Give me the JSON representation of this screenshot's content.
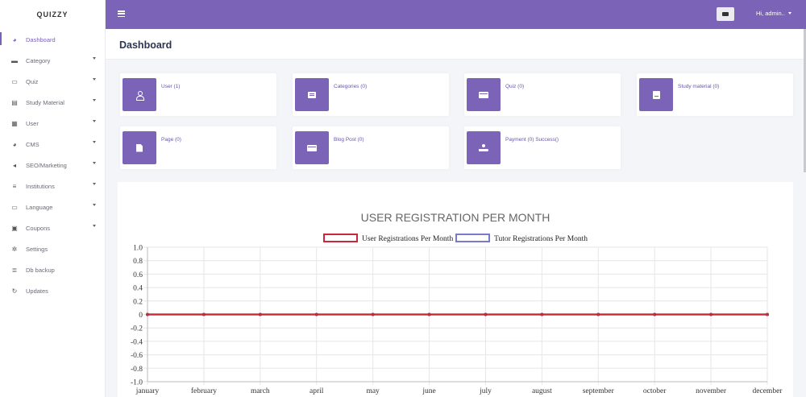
{
  "brand": "QUIZZY",
  "sidebar": {
    "items": [
      {
        "label": "Dashboard",
        "icon": "palette-icon",
        "active": true,
        "has_submenu": false
      },
      {
        "label": "Category",
        "icon": "folder-icon",
        "active": false,
        "has_submenu": true
      },
      {
        "label": "Quiz",
        "icon": "keyboard-icon",
        "active": false,
        "has_submenu": true
      },
      {
        "label": "Study Material",
        "icon": "books-icon",
        "active": false,
        "has_submenu": true
      },
      {
        "label": "User",
        "icon": "table-icon",
        "active": false,
        "has_submenu": true
      },
      {
        "label": "CMS",
        "icon": "palette-icon",
        "active": false,
        "has_submenu": true
      },
      {
        "label": "SEO/Marketing",
        "icon": "megaphone-icon",
        "active": false,
        "has_submenu": true
      },
      {
        "label": "Institutions",
        "icon": "bank-icon",
        "active": false,
        "has_submenu": true
      },
      {
        "label": "Language",
        "icon": "keyboard-icon",
        "active": false,
        "has_submenu": true
      },
      {
        "label": "Coupons",
        "icon": "gift-icon",
        "active": false,
        "has_submenu": true
      },
      {
        "label": "Settings",
        "icon": "gear-icon",
        "active": false,
        "has_submenu": false
      },
      {
        "label": "Db backup",
        "icon": "database-icon",
        "active": false,
        "has_submenu": false
      },
      {
        "label": "Updates",
        "icon": "refresh-icon",
        "active": false,
        "has_submenu": false
      }
    ]
  },
  "topbar": {
    "user_label": "Hi, admin..",
    "accent": "#7b63b8"
  },
  "page": {
    "title": "Dashboard"
  },
  "cards": [
    {
      "label": "User (1)",
      "icon": "user-icon"
    },
    {
      "label": "Categories (0)",
      "icon": "list-icon"
    },
    {
      "label": "Quiz (0)",
      "icon": "card-icon"
    },
    {
      "label": "Study material (0)",
      "icon": "book-icon"
    },
    {
      "label": "Page (0)",
      "icon": "file-icon"
    },
    {
      "label": "Blog Post (0)",
      "icon": "card-icon"
    },
    {
      "label": "Payment (0) Success()",
      "icon": "hand-coin-icon"
    }
  ],
  "chart_data": {
    "type": "line",
    "title": "USER REGISTRATION PER MONTH",
    "categories": [
      "january",
      "february",
      "march",
      "april",
      "may",
      "june",
      "july",
      "august",
      "september",
      "october",
      "november",
      "december"
    ],
    "series": [
      {
        "name": "User Registrations Per Month",
        "color": "#c8283a",
        "values": [
          0,
          0,
          0,
          0,
          0,
          0,
          0,
          0,
          0,
          0,
          0,
          0
        ]
      },
      {
        "name": "Tutor Registrations Per Month",
        "color": "#7a7acd",
        "values": [
          0,
          0,
          0,
          0,
          0,
          0,
          0,
          0,
          0,
          0,
          0,
          0
        ]
      }
    ],
    "ylim": [
      -1.0,
      1.0
    ],
    "yticks": [
      "1.0",
      "0.8",
      "0.6",
      "0.4",
      "0.2",
      "0",
      "-0.2",
      "-0.4",
      "-0.6",
      "-0.8",
      "-1.0"
    ],
    "grid": true,
    "legend": "top-center"
  }
}
